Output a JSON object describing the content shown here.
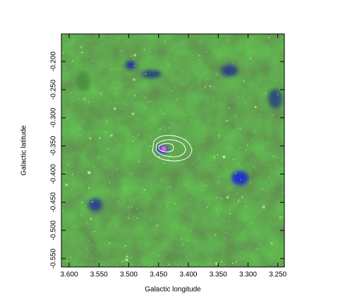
{
  "chart_data": {
    "type": "image",
    "x_label": "Galactic longitude",
    "y_label": "Galactic latitude",
    "xlim": [
      3.613,
      3.239
    ],
    "ylim": [
      -0.565,
      -0.151
    ],
    "xticks": [
      {
        "value": 3.6,
        "label": "3.600"
      },
      {
        "value": 3.55,
        "label": "3.550"
      },
      {
        "value": 3.5,
        "label": "3.500"
      },
      {
        "value": 3.45,
        "label": "3.450"
      },
      {
        "value": 3.4,
        "label": "3.400"
      },
      {
        "value": 3.35,
        "label": "3.350"
      },
      {
        "value": 3.3,
        "label": "3.300"
      },
      {
        "value": 3.25,
        "label": "3.250"
      }
    ],
    "yticks": [
      {
        "value": -0.2,
        "label": "-0.200"
      },
      {
        "value": -0.25,
        "label": "-0.250"
      },
      {
        "value": -0.3,
        "label": "-0.300"
      },
      {
        "value": -0.35,
        "label": "-0.350"
      },
      {
        "value": -0.4,
        "label": "-0.400"
      },
      {
        "value": -0.45,
        "label": "-0.450"
      },
      {
        "value": -0.5,
        "label": "-0.500"
      },
      {
        "value": -0.55,
        "label": "-0.550"
      }
    ]
  }
}
